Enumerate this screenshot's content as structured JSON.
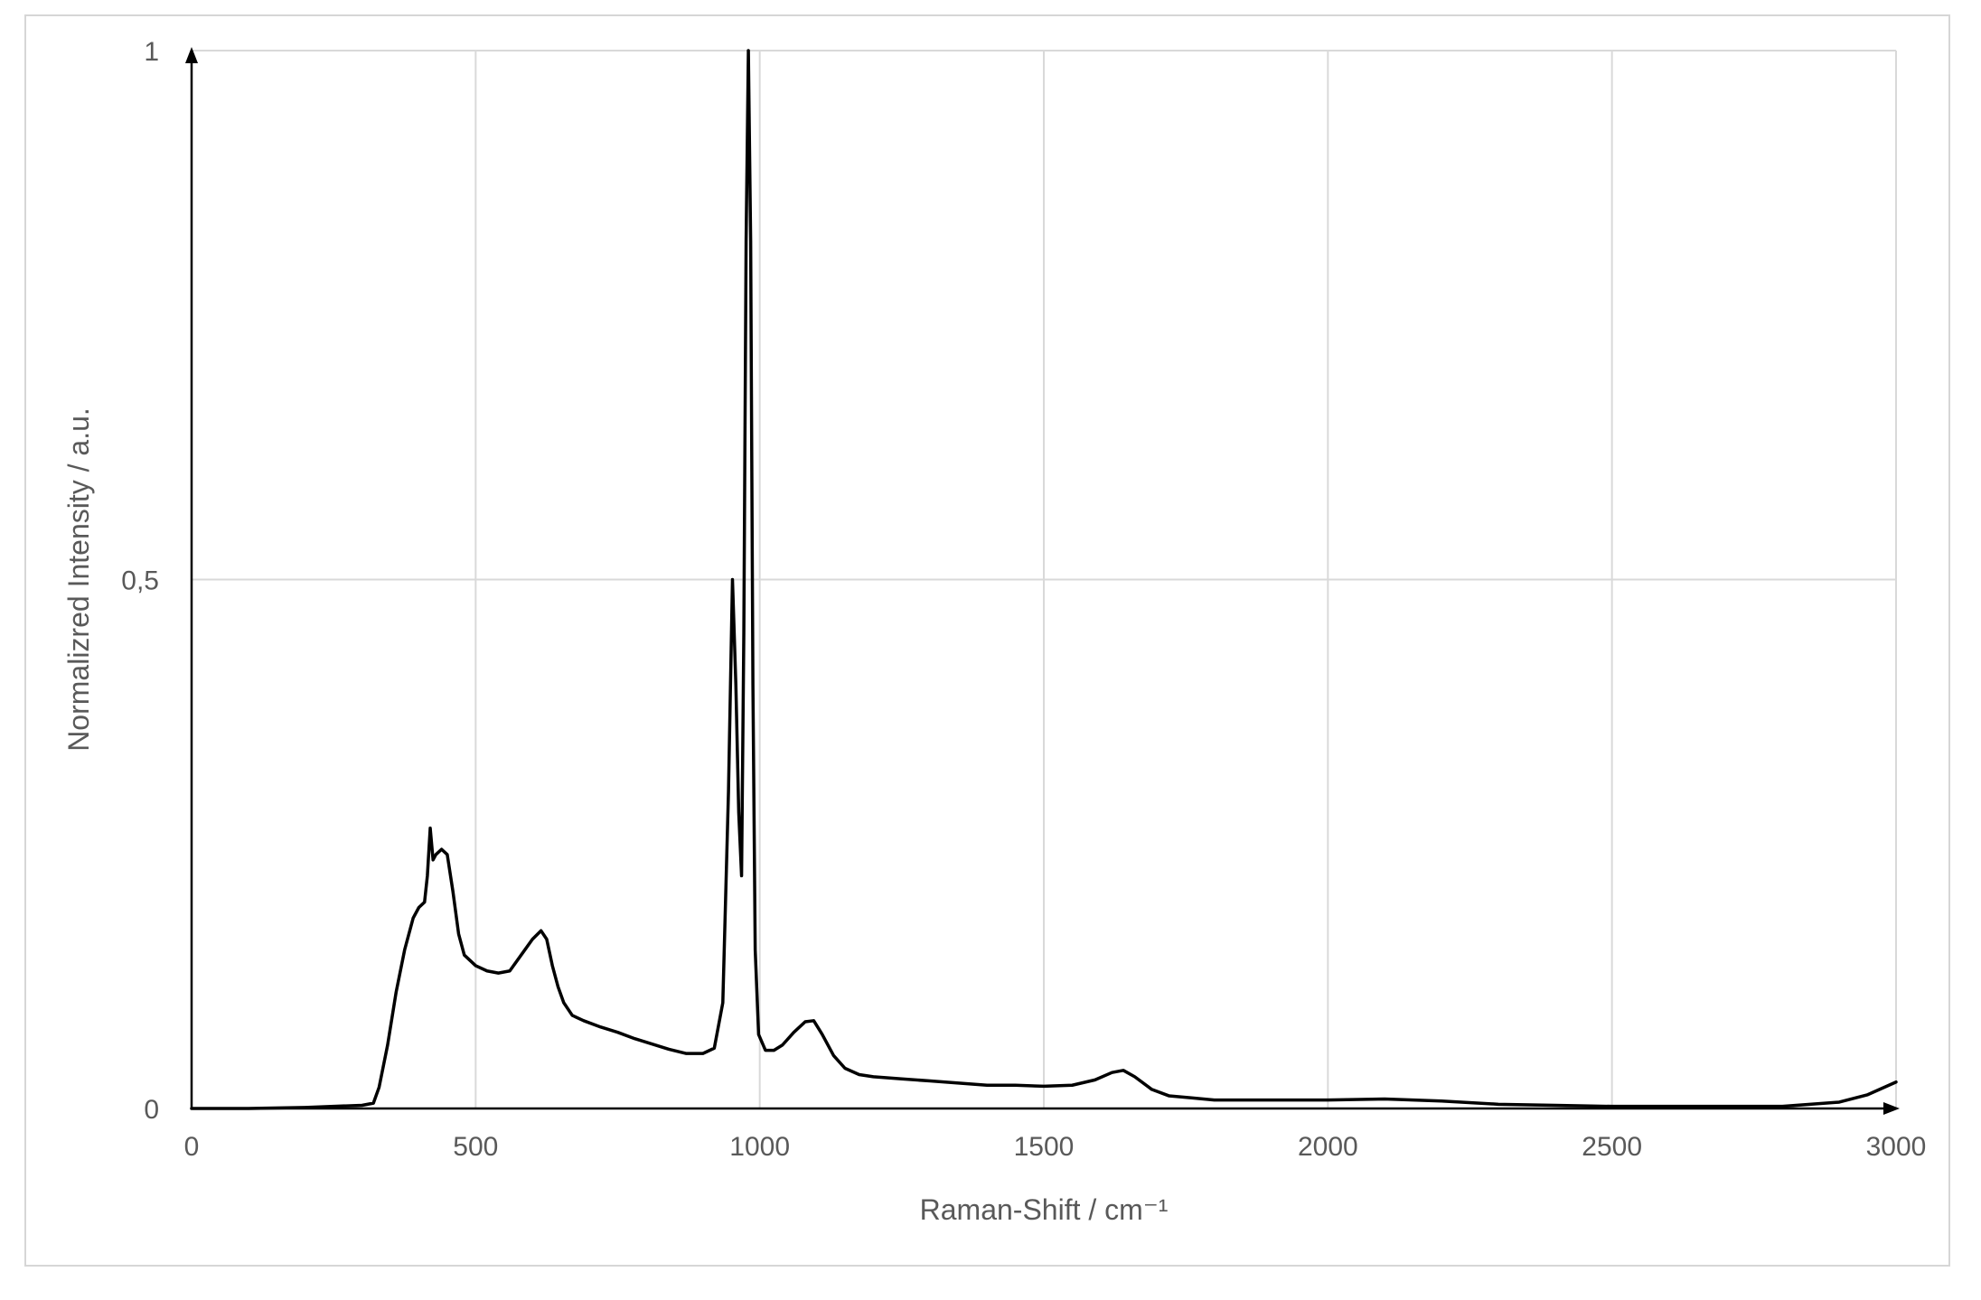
{
  "chart_data": {
    "type": "line",
    "title": "",
    "xlabel": "Raman-Shift / cm⁻¹",
    "ylabel": "Normalizred Intensity / a.u.",
    "xlim": [
      0,
      3000
    ],
    "ylim": [
      0,
      1
    ],
    "x_ticks": [
      0,
      500,
      1000,
      1500,
      2000,
      2500,
      3000
    ],
    "y_ticks": [
      0,
      0.5,
      1
    ],
    "x_tick_labels": [
      "0",
      "500",
      "1000",
      "1500",
      "2000",
      "2500",
      "3000"
    ],
    "y_tick_labels": [
      "0",
      "0,5",
      "1"
    ],
    "grid": true,
    "legend": "none",
    "line_color": "#000000",
    "series": [
      {
        "x": [
          0,
          100,
          200,
          300,
          320,
          330,
          345,
          360,
          375,
          390,
          400,
          410,
          415,
          420,
          425,
          430,
          440,
          450,
          460,
          470,
          480,
          500,
          520,
          540,
          560,
          580,
          600,
          615,
          625,
          635,
          645,
          655,
          670,
          690,
          720,
          750,
          780,
          810,
          840,
          870,
          900,
          920,
          935,
          945,
          952,
          958,
          963,
          968,
          972,
          976,
          980,
          984,
          988,
          992,
          998,
          1010,
          1025,
          1040,
          1060,
          1080,
          1095,
          1110,
          1130,
          1150,
          1175,
          1200,
          1250,
          1300,
          1350,
          1400,
          1450,
          1500,
          1550,
          1590,
          1620,
          1640,
          1660,
          1690,
          1720,
          1760,
          1800,
          1900,
          2000,
          2100,
          2150,
          2200,
          2300,
          2400,
          2500,
          2600,
          2700,
          2800,
          2900,
          2950,
          3000
        ],
        "y": [
          0.0,
          0.0,
          0.001,
          0.003,
          0.005,
          0.02,
          0.06,
          0.11,
          0.15,
          0.18,
          0.19,
          0.195,
          0.22,
          0.265,
          0.235,
          0.24,
          0.245,
          0.24,
          0.205,
          0.165,
          0.145,
          0.135,
          0.13,
          0.128,
          0.13,
          0.145,
          0.16,
          0.168,
          0.16,
          0.135,
          0.115,
          0.1,
          0.088,
          0.083,
          0.077,
          0.072,
          0.066,
          0.061,
          0.056,
          0.052,
          0.052,
          0.057,
          0.1,
          0.3,
          0.5,
          0.4,
          0.28,
          0.22,
          0.45,
          0.82,
          1.0,
          0.82,
          0.4,
          0.15,
          0.07,
          0.055,
          0.055,
          0.06,
          0.072,
          0.082,
          0.083,
          0.07,
          0.05,
          0.038,
          0.032,
          0.03,
          0.028,
          0.026,
          0.024,
          0.022,
          0.022,
          0.021,
          0.022,
          0.027,
          0.034,
          0.036,
          0.03,
          0.018,
          0.012,
          0.01,
          0.008,
          0.008,
          0.008,
          0.009,
          0.008,
          0.007,
          0.004,
          0.003,
          0.002,
          0.002,
          0.002,
          0.002,
          0.006,
          0.013,
          0.025
        ]
      }
    ]
  }
}
